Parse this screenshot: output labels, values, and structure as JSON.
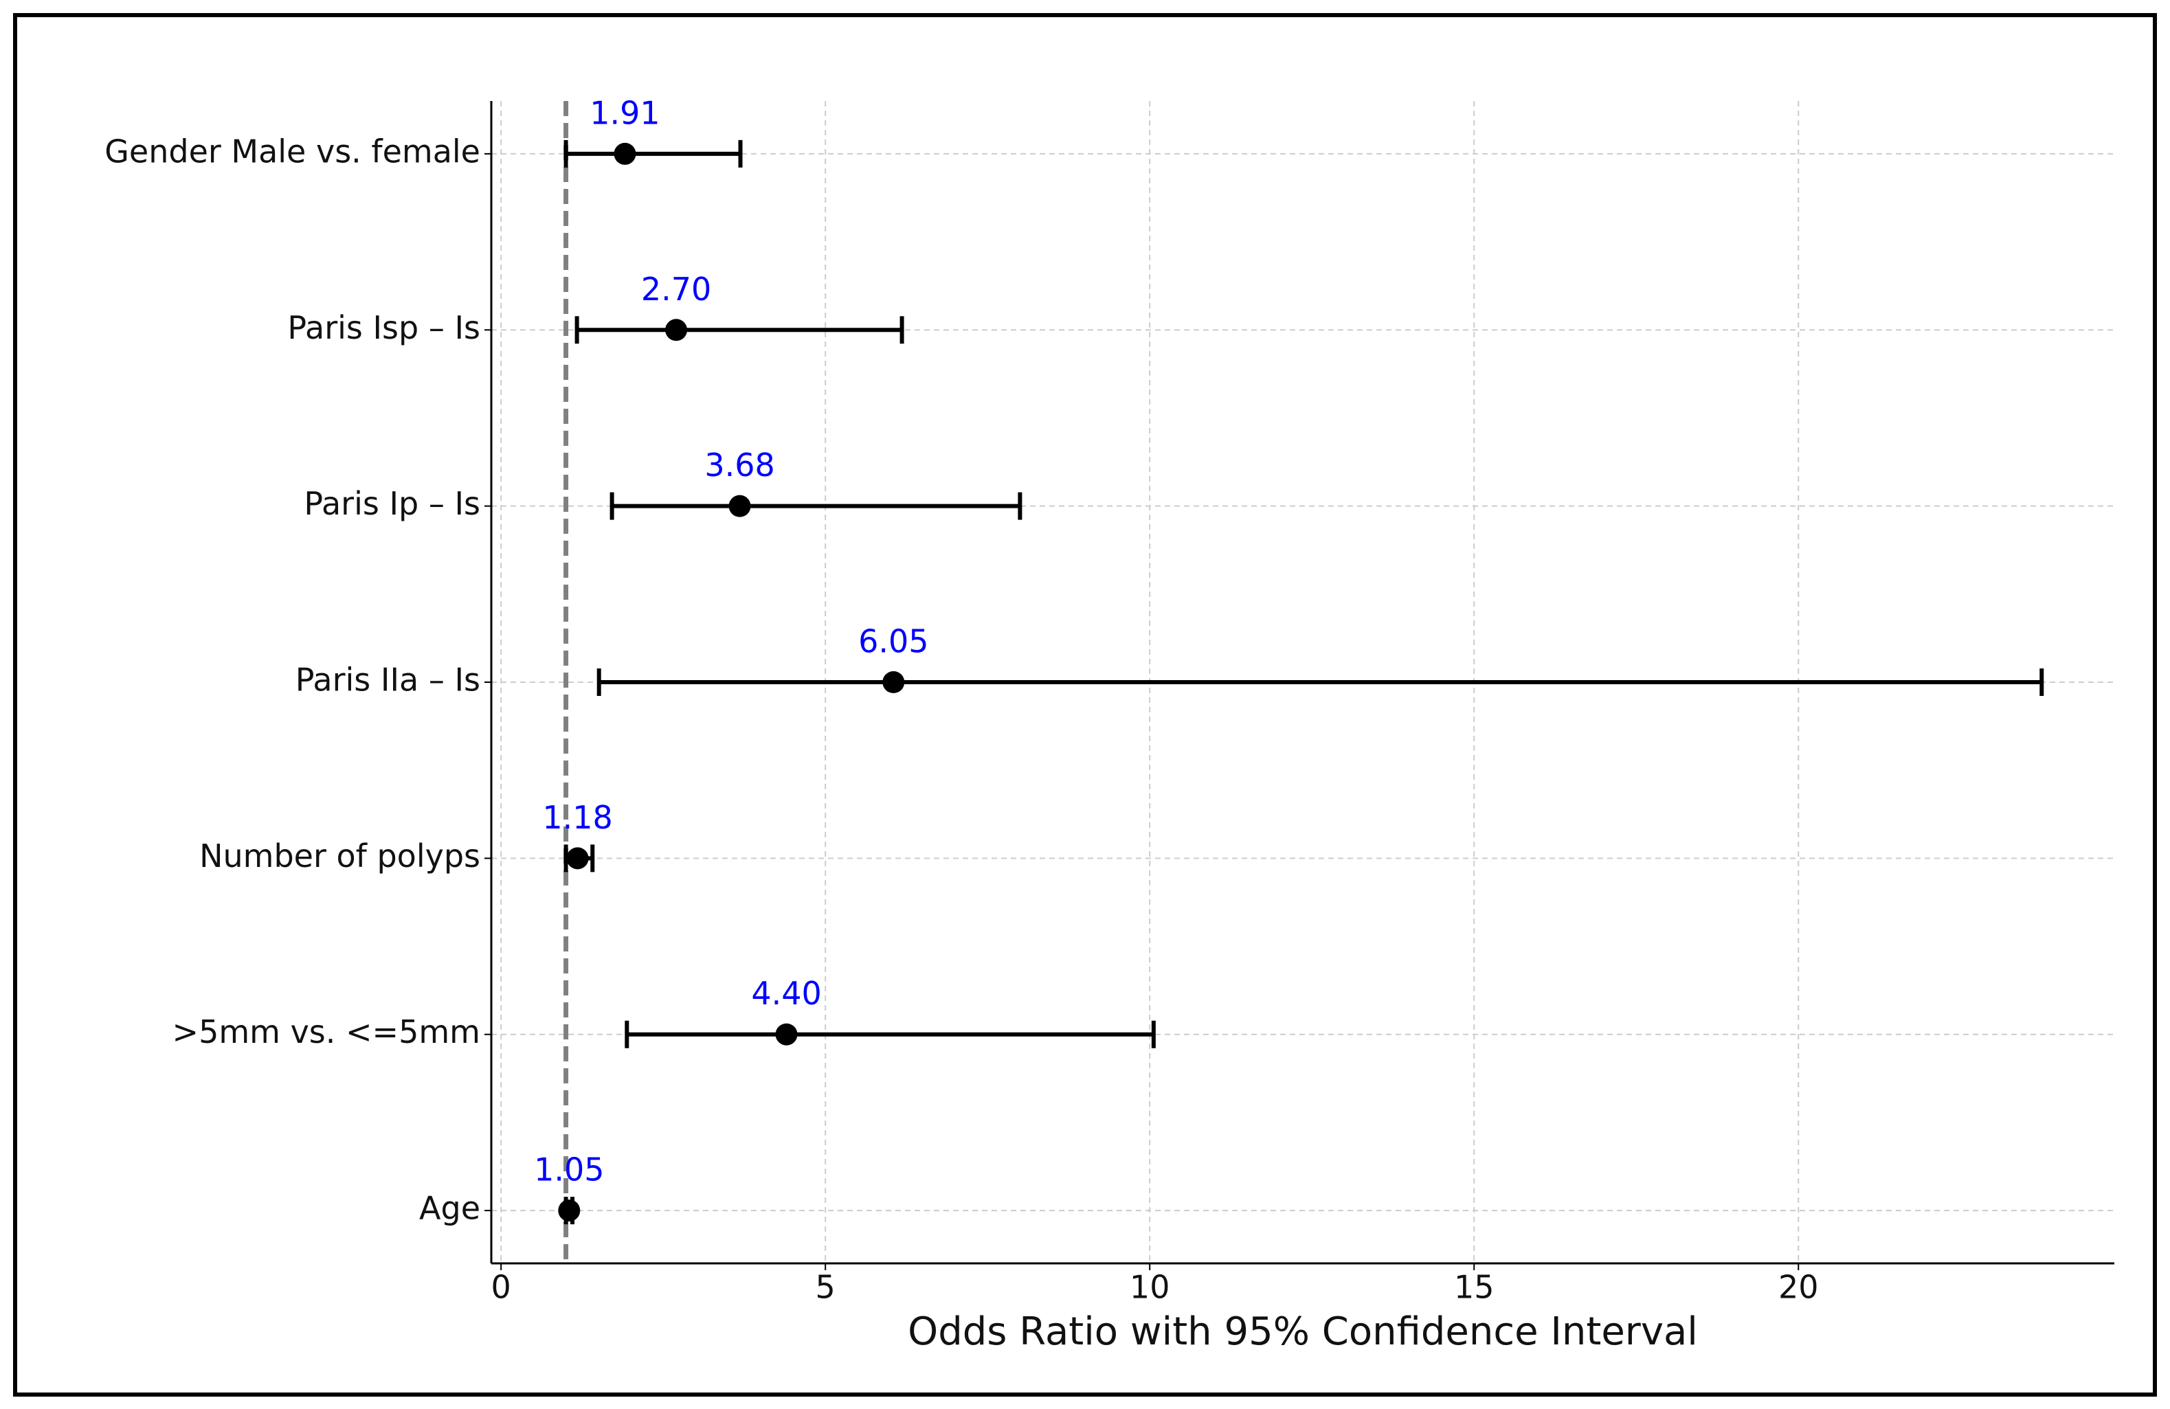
{
  "chart_data": {
    "type": "forest",
    "xlabel": "Odds Ratio with 95% Confidence Interval",
    "categories": [
      "Gender Male vs. female",
      "Paris Isp – Is",
      "Paris Ip – Is",
      "Paris IIa – Is",
      "Number of polyps",
      ">5mm vs. <=5mm",
      "Age"
    ],
    "values": [
      1.91,
      2.7,
      3.68,
      6.05,
      1.18,
      4.4,
      1.05
    ],
    "value_labels": [
      "1.91",
      "2.70",
      "3.68",
      "6.05",
      "1.18",
      "4.40",
      "1.05"
    ],
    "lower": [
      1.0,
      1.17,
      1.71,
      1.51,
      1.0,
      1.94,
      1.0
    ],
    "upper": [
      3.69,
      6.18,
      8.0,
      23.75,
      1.41,
      10.06,
      1.1
    ],
    "color": "#000000",
    "label_color": "#0000ff",
    "reference_line": 1,
    "reference_color": "#808080",
    "xlim": [
      -0.15,
      24.87
    ],
    "xticks": [
      0,
      5,
      10,
      15,
      20
    ],
    "grid": true
  }
}
